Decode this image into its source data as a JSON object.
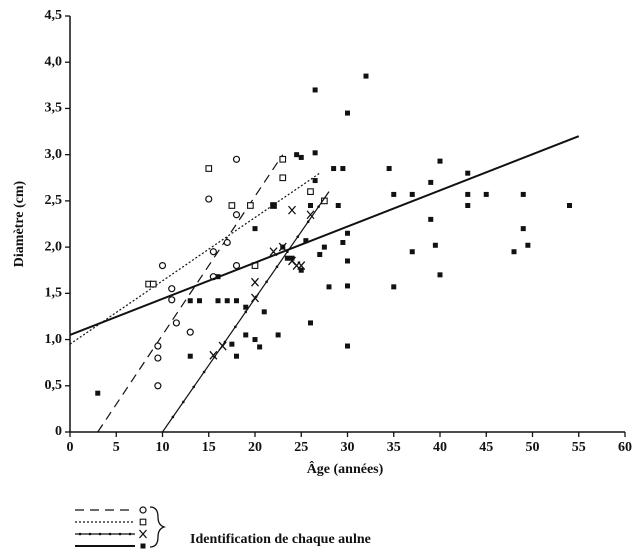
{
  "chart_data": {
    "type": "scatter",
    "x_label": "Âge (années)",
    "y_label": "Diamètre (cm)",
    "xlim": [
      0,
      60
    ],
    "ylim": [
      0,
      4.5
    ],
    "xticks": [
      0,
      5,
      10,
      15,
      20,
      25,
      30,
      35,
      40,
      45,
      50,
      55,
      60
    ],
    "yticks": [
      0,
      {
        "value": 0.5,
        "label": "0,5"
      },
      {
        "value": 1,
        "label": "1,0"
      },
      {
        "value": 1.5,
        "label": "1,5"
      },
      {
        "value": 2,
        "label": "2,0"
      },
      {
        "value": 2.5,
        "label": "2,5"
      },
      {
        "value": 3,
        "label": "3,0"
      },
      {
        "value": 3.5,
        "label": "3,5"
      },
      {
        "value": 4,
        "label": "4,0"
      },
      {
        "value": 4.5,
        "label": "4,5"
      }
    ],
    "legend_label": "Identification de chaque aulne",
    "series": [
      {
        "marker": "circle",
        "line_style": "dashed",
        "color": "#111",
        "x": [
          9.5,
          9.5,
          9.5,
          10,
          11,
          11,
          11.5,
          13,
          15,
          15.5,
          15.5,
          17,
          18,
          18,
          18
        ],
        "values": [
          0.5,
          0.8,
          0.93,
          1.8,
          1.43,
          1.55,
          1.18,
          1.08,
          2.52,
          1.95,
          1.68,
          2.05,
          2.35,
          1.8,
          2.95
        ],
        "fit": {
          "x": [
            3,
            23
          ],
          "y": [
            0,
            3.0
          ]
        }
      },
      {
        "marker": "square",
        "line_style": "dotted",
        "color": "#111",
        "x": [
          8.5,
          9,
          15,
          17.5,
          19.5,
          20,
          22,
          23,
          23,
          26,
          27.5
        ],
        "values": [
          1.6,
          1.6,
          2.85,
          2.45,
          2.45,
          1.8,
          2.45,
          2.95,
          2.75,
          2.6,
          2.5
        ],
        "fit": {
          "x": [
            0,
            27
          ],
          "y": [
            0.95,
            2.8
          ]
        }
      },
      {
        "marker": "cross",
        "line_style": "dotline",
        "color": "#111",
        "x": [
          15.5,
          16.5,
          20,
          20,
          22,
          23,
          24,
          24,
          24.5,
          25,
          26
        ],
        "values": [
          0.83,
          0.93,
          1.45,
          1.62,
          1.95,
          2.0,
          1.85,
          2.4,
          1.8,
          1.8,
          2.35
        ],
        "fit": {
          "x": [
            10,
            28
          ],
          "y": [
            0,
            2.6
          ]
        }
      },
      {
        "marker": "filled",
        "line_style": "solid",
        "color": "#111",
        "x": [
          3,
          13,
          13,
          14,
          16,
          16,
          17,
          17.5,
          18,
          18,
          19,
          19,
          20,
          20,
          20.5,
          21,
          22,
          22.5,
          23,
          23.5,
          24,
          24.5,
          25,
          25,
          25.5,
          26,
          26,
          26.5,
          26.5,
          26.5,
          27,
          27.5,
          28,
          28.5,
          29,
          29.5,
          29.5,
          30,
          30,
          30,
          30,
          30,
          32,
          34.5,
          35,
          35,
          37,
          37,
          39,
          39,
          39.5,
          40,
          40,
          43,
          43,
          43,
          45,
          48,
          49,
          49,
          49.5,
          54
        ],
        "values": [
          0.42,
          0.82,
          1.42,
          1.42,
          1.42,
          1.68,
          1.42,
          0.95,
          1.42,
          0.82,
          1.05,
          1.35,
          1.0,
          2.2,
          0.92,
          1.3,
          2.45,
          1.05,
          2.0,
          1.88,
          1.88,
          3.0,
          2.97,
          1.75,
          2.07,
          1.18,
          2.45,
          2.72,
          3.7,
          3.02,
          1.92,
          2.0,
          1.57,
          2.85,
          2.45,
          2.05,
          2.85,
          3.45,
          1.58,
          0.93,
          2.15,
          1.85,
          3.85,
          2.85,
          2.57,
          1.57,
          1.95,
          2.57,
          2.7,
          2.3,
          2.02,
          2.93,
          1.7,
          2.8,
          2.57,
          2.45,
          2.57,
          1.95,
          2.2,
          2.57,
          2.02,
          2.45
        ],
        "fit": {
          "x": [
            0,
            55
          ],
          "y": [
            1.05,
            3.2
          ]
        }
      }
    ]
  }
}
